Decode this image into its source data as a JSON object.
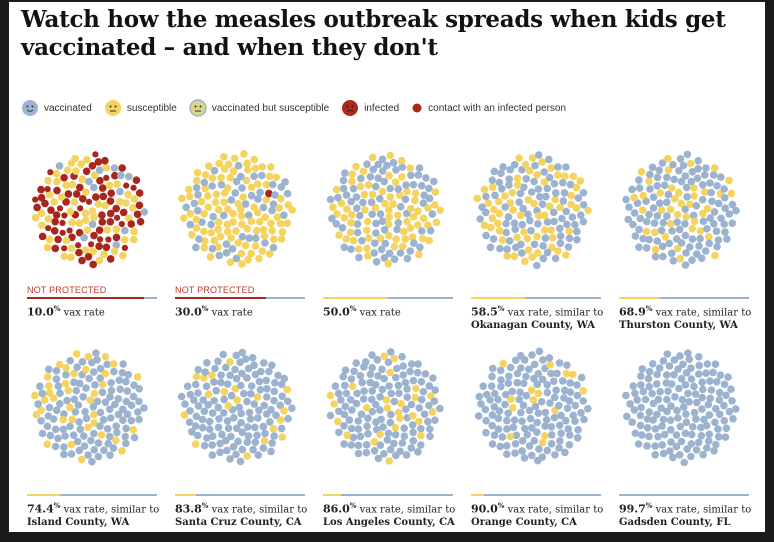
{
  "title": "Watch how the measles outbreak spreads when kids get vaccinated – and when they don't",
  "legend": [
    {
      "key": "vaccinated",
      "label": "vaccinated",
      "color": "#9cb3cf",
      "icon": "vaccinated-face-icon"
    },
    {
      "key": "susceptible",
      "label": "susceptible",
      "color": "#f4d35e",
      "icon": "susceptible-face-icon"
    },
    {
      "key": "vaccinated_but_susceptible",
      "label": "vaccinated but susceptible",
      "color": "#dcd58a",
      "icon": "vaccinated-but-susceptible-face-icon"
    },
    {
      "key": "infected",
      "label": "infected",
      "color": "#b0271c",
      "icon": "infected-face-icon"
    },
    {
      "key": "contact",
      "label": "contact with an infected person",
      "color": "#a9281d",
      "icon": "contact-dot-icon"
    }
  ],
  "colors": {
    "vaccinated": "#9cb3cf",
    "susceptible": "#f4d35e",
    "infected": "#a8261b",
    "vbs": "#dcd58a"
  },
  "chart_data": {
    "type": "scatter",
    "title": "Watch how the measles outbreak spreads when kids get vaccinated – and when they don't",
    "panels": [
      {
        "vax_rate": 10.0,
        "rate": "10.0",
        "suffix": "vax rate",
        "place": "",
        "not_protected": "NOT PROTECTED",
        "infected_fraction": 0.55
      },
      {
        "vax_rate": 30.0,
        "rate": "30.0",
        "suffix": "vax rate",
        "place": "",
        "not_protected": "NOT PROTECTED",
        "infected_fraction": 0.01
      },
      {
        "vax_rate": 50.0,
        "rate": "50.0",
        "suffix": "vax rate",
        "place": "",
        "not_protected": "",
        "infected_fraction": 0
      },
      {
        "vax_rate": 58.5,
        "rate": "58.5",
        "suffix": "vax rate, similar to",
        "place": "Okanagan County, WA",
        "not_protected": "",
        "infected_fraction": 0
      },
      {
        "vax_rate": 68.9,
        "rate": "68.9",
        "suffix": "vax rate, similar to",
        "place": "Thurston County, WA",
        "not_protected": "",
        "infected_fraction": 0
      },
      {
        "vax_rate": 74.4,
        "rate": "74.4",
        "suffix": "vax rate, similar to",
        "place": "Island County, WA",
        "not_protected": "",
        "infected_fraction": 0
      },
      {
        "vax_rate": 83.8,
        "rate": "83.8",
        "suffix": "vax rate, similar to",
        "place": "Santa Cruz County, CA",
        "not_protected": "",
        "infected_fraction": 0
      },
      {
        "vax_rate": 86.0,
        "rate": "86.0",
        "suffix": "vax rate, similar to",
        "place": "Los Angeles County, CA",
        "not_protected": "",
        "infected_fraction": 0
      },
      {
        "vax_rate": 90.0,
        "rate": "90.0",
        "suffix": "vax rate, similar to",
        "place": "Orange County, CA",
        "not_protected": "",
        "infected_fraction": 0
      },
      {
        "vax_rate": 99.7,
        "rate": "99.7",
        "suffix": "vax rate, similar to",
        "place": "Gadsden County, FL",
        "not_protected": "",
        "infected_fraction": 0
      }
    ]
  }
}
